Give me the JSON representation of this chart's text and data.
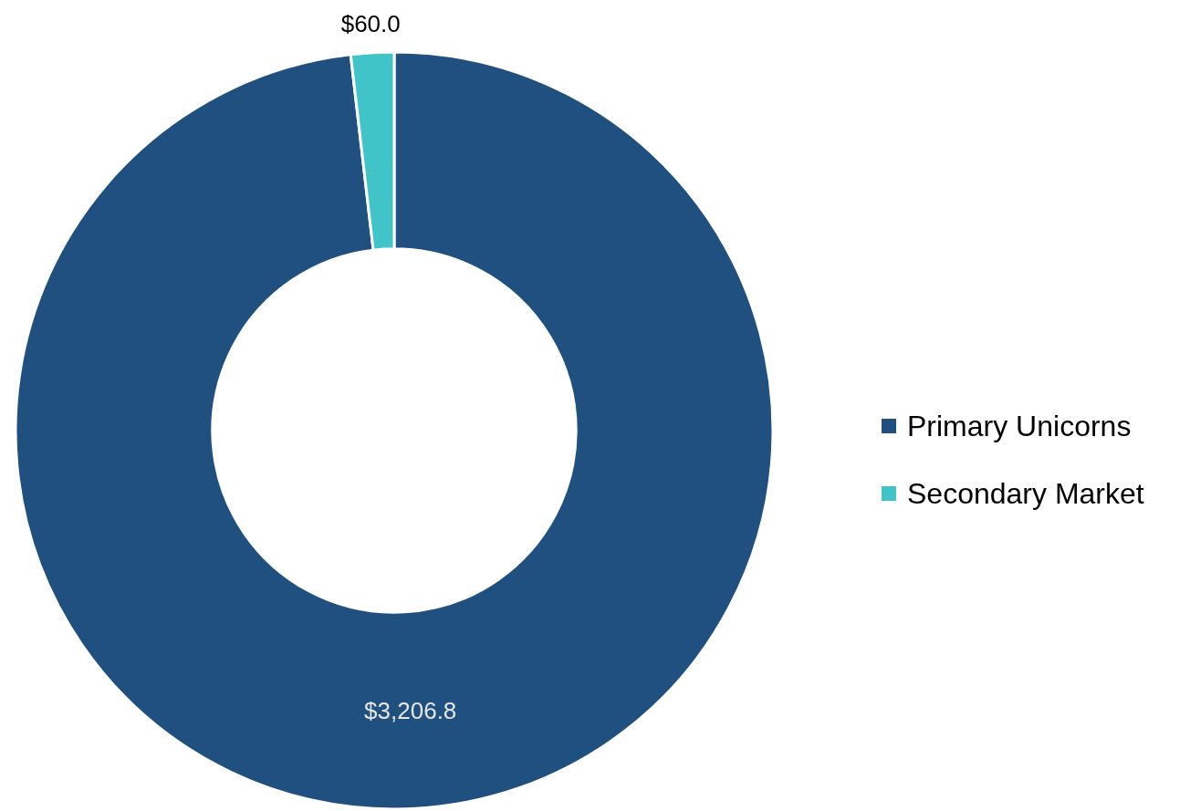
{
  "chart_data": {
    "type": "donut",
    "categories": [
      "Primary Unicorns",
      "Secondary Market"
    ],
    "values": [
      3206.8,
      60.0
    ],
    "value_labels": [
      "$3,206.8",
      "$60.0"
    ],
    "colors": [
      "#1f507f",
      "#40c4c8"
    ],
    "legend": "right"
  }
}
